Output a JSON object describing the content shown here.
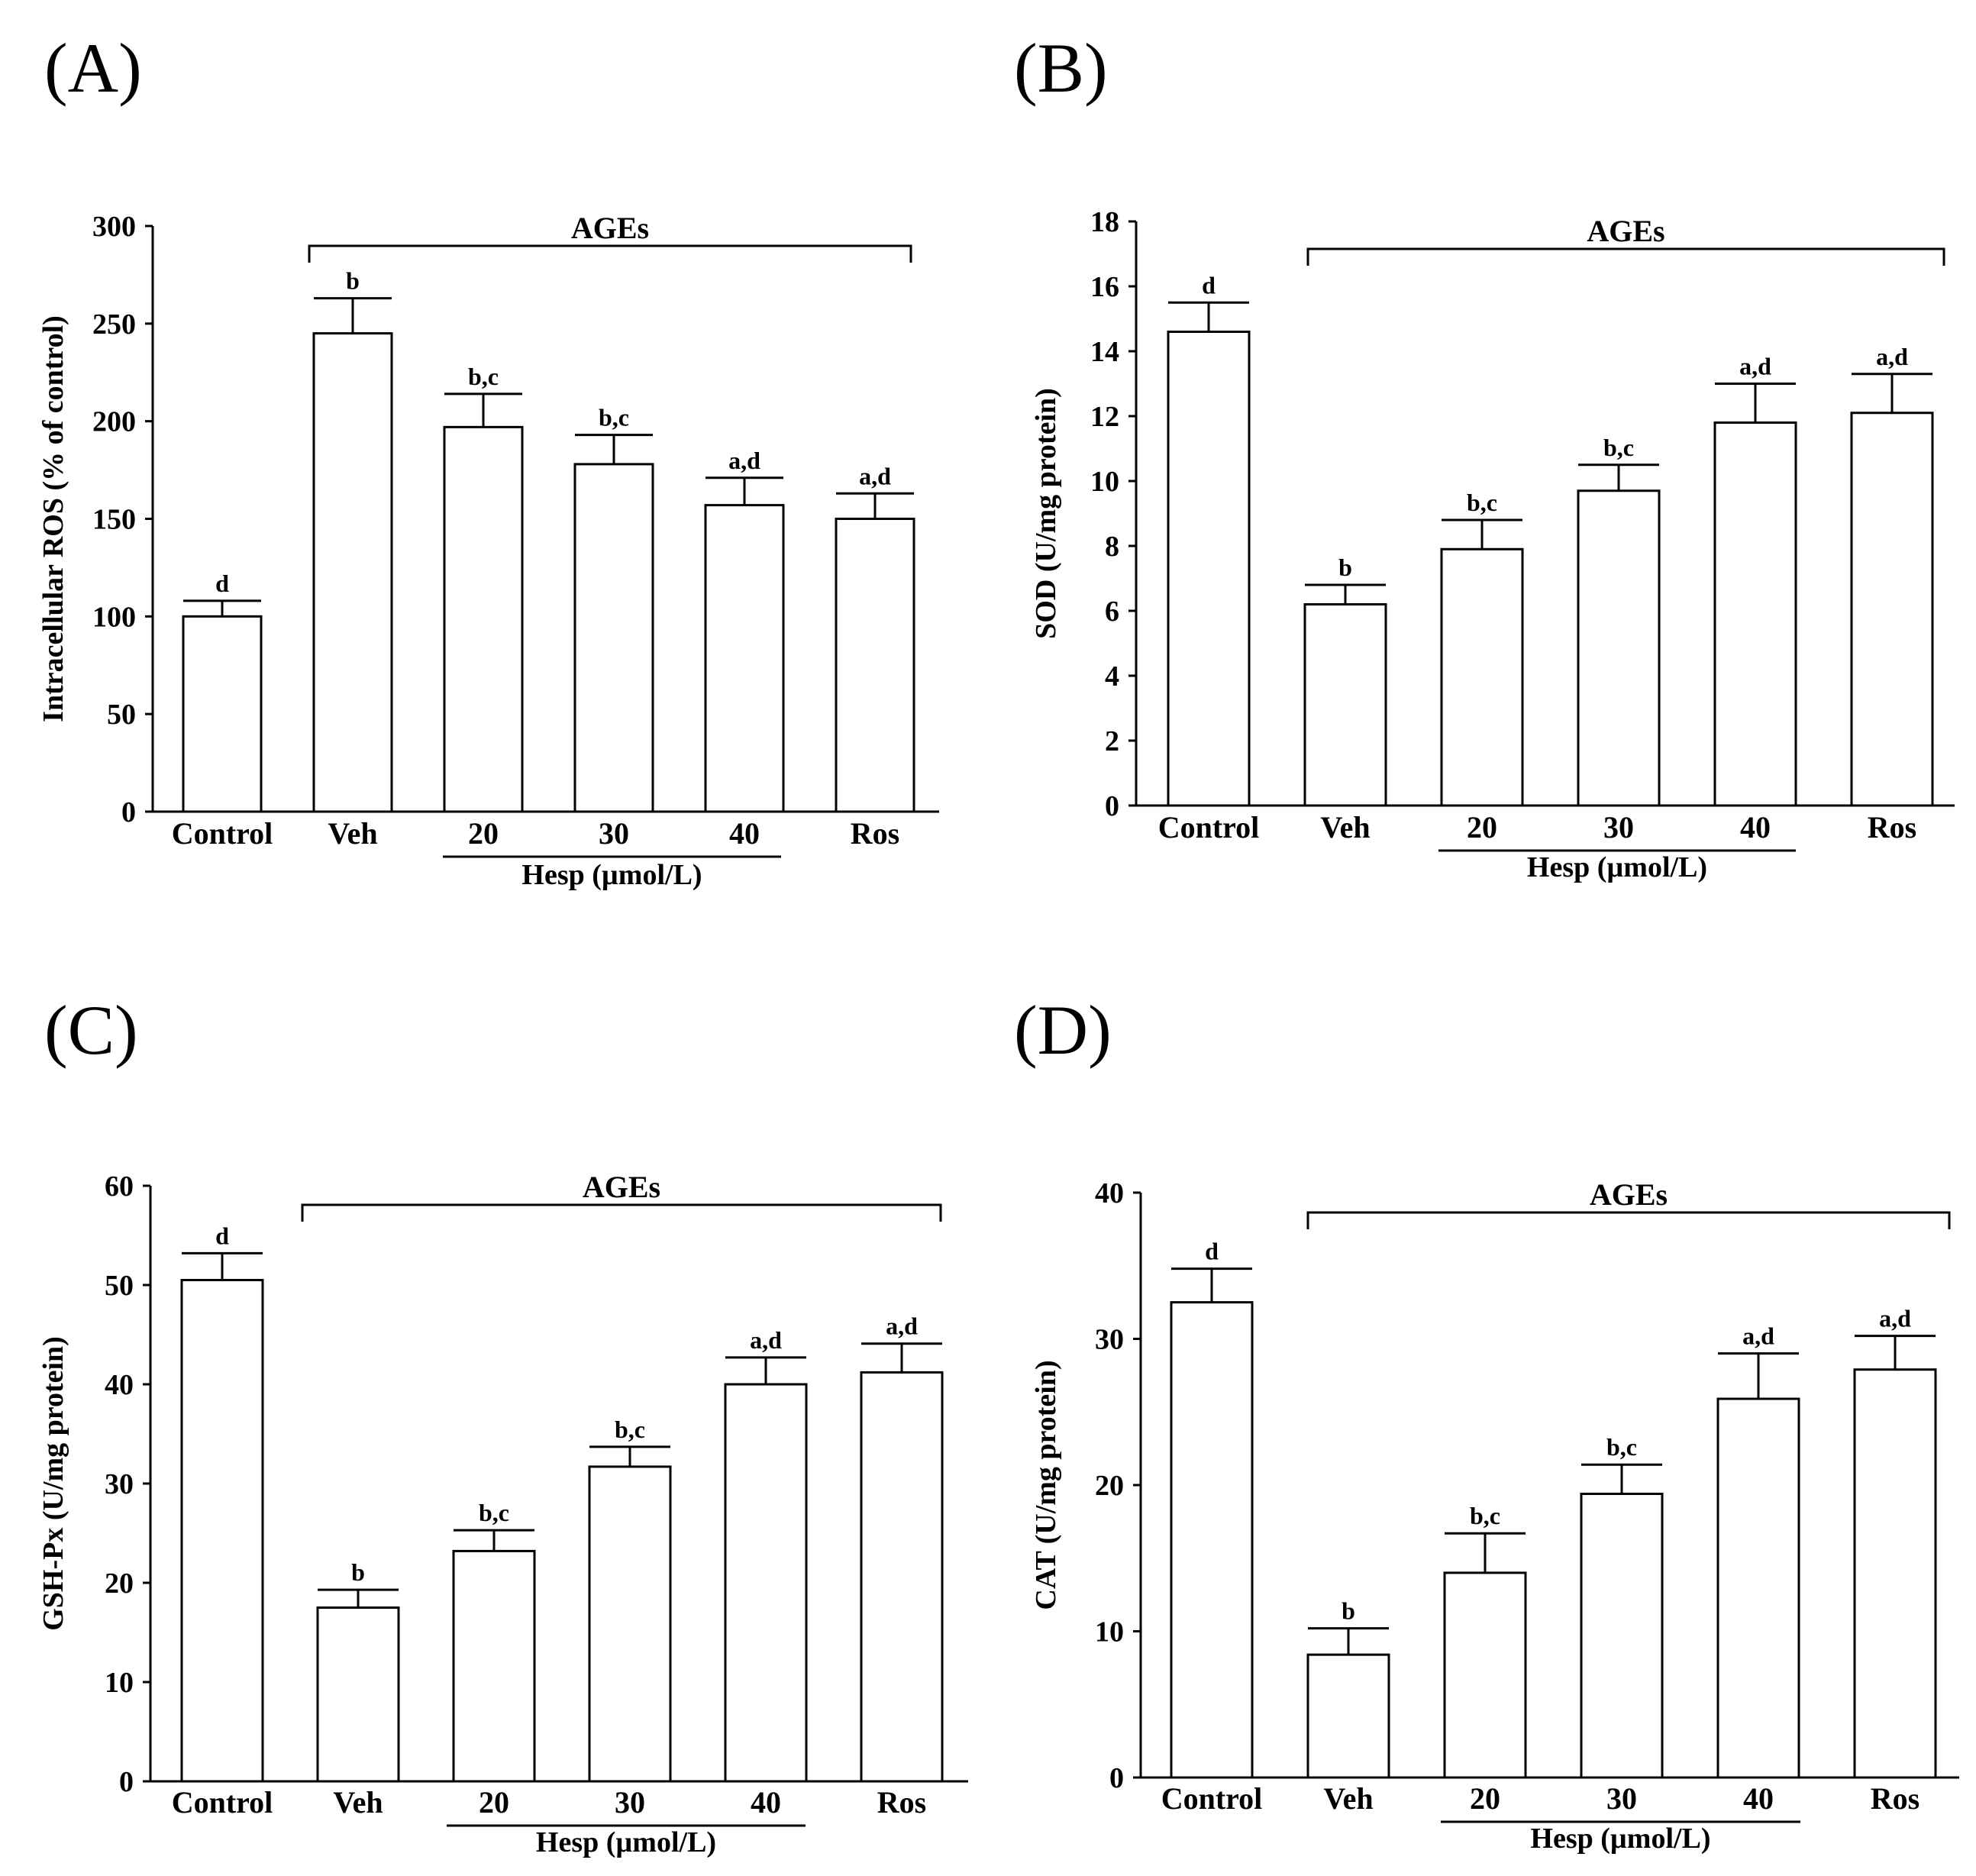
{
  "chart_data": [
    {
      "type": "bar",
      "panel": "(A)",
      "categories": [
        "Control",
        "Veh",
        "20",
        "30",
        "40",
        "Ros"
      ],
      "values": [
        100,
        245,
        197,
        178,
        157,
        150
      ],
      "errors": [
        8,
        18,
        17,
        15,
        14,
        13
      ],
      "significance": [
        "d",
        "b",
        "b,c",
        "b,c",
        "a,d",
        "a,d"
      ],
      "ylabel": "Intracellular ROS (% of control)",
      "ylim": [
        0,
        300
      ],
      "yticks": [
        0,
        50,
        100,
        150,
        200,
        250,
        300
      ],
      "group_label": "Hesp (µmol/L)",
      "bracket_label": "AGEs"
    },
    {
      "type": "bar",
      "panel": "(B)",
      "categories": [
        "Control",
        "Veh",
        "20",
        "30",
        "40",
        "Ros"
      ],
      "values": [
        14.6,
        6.2,
        7.9,
        9.7,
        11.8,
        12.1
      ],
      "errors": [
        0.9,
        0.6,
        0.9,
        0.8,
        1.2,
        1.2
      ],
      "significance": [
        "d",
        "b",
        "b,c",
        "b,c",
        "a,d",
        "a,d"
      ],
      "ylabel": "SOD (U/mg protein)",
      "ylim": [
        0,
        18
      ],
      "yticks": [
        0,
        2,
        4,
        6,
        8,
        10,
        12,
        14,
        16,
        18
      ],
      "group_label": "Hesp (µmol/L)",
      "bracket_label": "AGEs"
    },
    {
      "type": "bar",
      "panel": "(C)",
      "categories": [
        "Control",
        "Veh",
        "20",
        "30",
        "40",
        "Ros"
      ],
      "values": [
        50.5,
        17.5,
        23.2,
        31.7,
        40.0,
        41.2
      ],
      "errors": [
        2.7,
        1.8,
        2.1,
        2.0,
        2.7,
        2.9
      ],
      "significance": [
        "d",
        "b",
        "b,c",
        "b,c",
        "a,d",
        "a,d"
      ],
      "ylabel": "GSH-Px (U/mg protein)",
      "ylim": [
        0,
        60
      ],
      "yticks": [
        0,
        10,
        20,
        30,
        40,
        50,
        60
      ],
      "group_label": "Hesp (µmol/L)",
      "bracket_label": "AGEs"
    },
    {
      "type": "bar",
      "panel": "(D)",
      "categories": [
        "Control",
        "Veh",
        "20",
        "30",
        "40",
        "Ros"
      ],
      "values": [
        32.5,
        8.4,
        14.0,
        19.4,
        25.9,
        27.9
      ],
      "errors": [
        2.3,
        1.8,
        2.7,
        2.0,
        3.1,
        2.3
      ],
      "significance": [
        "d",
        "b",
        "b,c",
        "b,c",
        "a,d",
        "a,d"
      ],
      "ylabel": "CAT (U/mg protein)",
      "ylim": [
        0,
        40
      ],
      "yticks": [
        0,
        10,
        20,
        30,
        40
      ],
      "group_label": "Hesp (µmol/L)",
      "bracket_label": "AGEs"
    }
  ]
}
